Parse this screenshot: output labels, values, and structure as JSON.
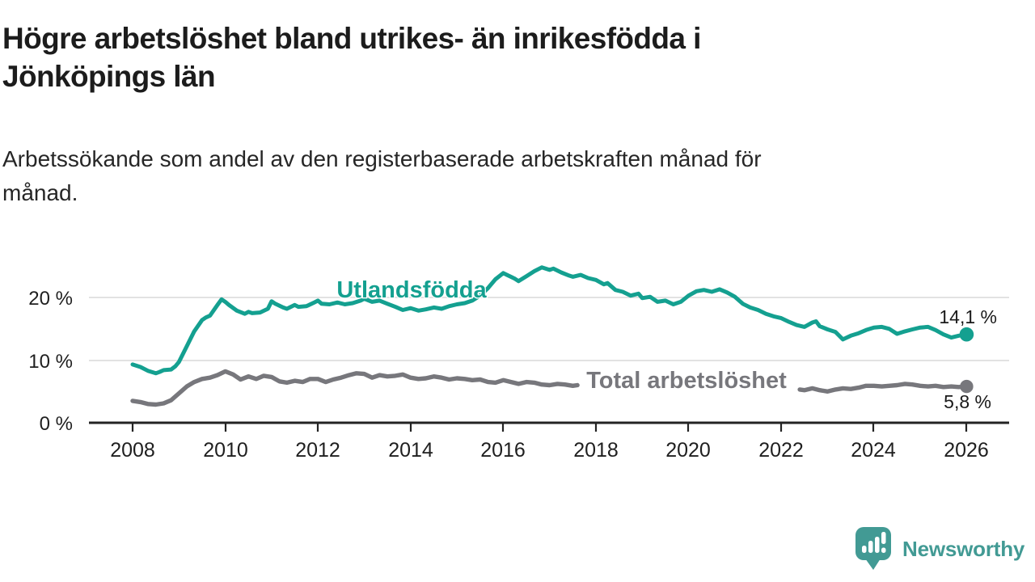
{
  "header": {
    "title_line1": "Högre arbetslöshet bland utrikes- än inrikesfödda i",
    "title_line2": "Jönköpings län",
    "subtitle_line1": "Arbetssökande som andel av den registerbaserade arbetskraften månad för",
    "subtitle_line2": "månad."
  },
  "chart_data": {
    "type": "line",
    "title": "Högre arbetslöshet bland utrikes- än inrikesfödda i Jönköpings län",
    "subtitle": "Arbetssökande som andel av den registerbaserade arbetskraften månad för månad.",
    "grid": "horizontal-only",
    "legend_position": "inline-on-line",
    "x_axis": {
      "tick_labels": [
        "2008",
        "2010",
        "2012",
        "2014",
        "2016",
        "2018",
        "2020",
        "2022",
        "2024",
        "2026"
      ],
      "tick_years": [
        2008,
        2010,
        2012,
        2014,
        2016,
        2018,
        2020,
        2022,
        2024,
        2026
      ],
      "range": [
        2007.1,
        2026.9
      ]
    },
    "y_axis": {
      "tick_labels": [
        "20 %",
        "10 %",
        "0 %"
      ],
      "tick_values": [
        20,
        10,
        0
      ],
      "unit": "%",
      "range": [
        0,
        26
      ],
      "gridlines_at": [
        10,
        20
      ]
    },
    "series": [
      {
        "name": "Utlandsfödda",
        "inline_label": "Utlandsfödda",
        "end_label": "14,1 %",
        "end_value": 14.1,
        "color": "#14a090",
        "segments": [
          [
            [
              2008.0,
              9.3
            ],
            [
              2008.17,
              8.9
            ],
            [
              2008.33,
              8.3
            ],
            [
              2008.5,
              7.9
            ],
            [
              2008.58,
              8.1
            ],
            [
              2008.67,
              8.4
            ],
            [
              2008.83,
              8.5
            ],
            [
              2008.92,
              9.0
            ],
            [
              2009.0,
              9.7
            ],
            [
              2009.17,
              12.2
            ],
            [
              2009.33,
              14.6
            ],
            [
              2009.5,
              16.4
            ],
            [
              2009.58,
              16.8
            ],
            [
              2009.67,
              17.1
            ],
            [
              2009.83,
              18.8
            ],
            [
              2009.92,
              19.7
            ],
            [
              2010.0,
              19.3
            ],
            [
              2010.08,
              18.8
            ],
            [
              2010.25,
              17.9
            ],
            [
              2010.42,
              17.4
            ],
            [
              2010.5,
              17.7
            ],
            [
              2010.58,
              17.5
            ],
            [
              2010.75,
              17.6
            ],
            [
              2010.92,
              18.2
            ],
            [
              2011.0,
              19.4
            ],
            [
              2011.08,
              19.0
            ],
            [
              2011.25,
              18.4
            ],
            [
              2011.33,
              18.2
            ],
            [
              2011.5,
              18.8
            ],
            [
              2011.58,
              18.5
            ],
            [
              2011.75,
              18.6
            ],
            [
              2011.92,
              19.2
            ],
            [
              2012.0,
              19.5
            ],
            [
              2012.08,
              19.0
            ],
            [
              2012.25,
              18.9
            ],
            [
              2012.42,
              19.2
            ],
            [
              2012.58,
              18.9
            ],
            [
              2012.75,
              19.1
            ],
            [
              2012.92,
              19.5
            ],
            [
              2013.0,
              19.8
            ],
            [
              2013.17,
              19.3
            ],
            [
              2013.33,
              19.5
            ],
            [
              2013.5,
              19.0
            ],
            [
              2013.67,
              18.5
            ],
            [
              2013.83,
              18.0
            ],
            [
              2014.0,
              18.3
            ],
            [
              2014.17,
              17.9
            ],
            [
              2014.33,
              18.1
            ],
            [
              2014.5,
              18.4
            ],
            [
              2014.67,
              18.2
            ],
            [
              2014.83,
              18.6
            ],
            [
              2015.0,
              18.9
            ],
            [
              2015.17,
              19.1
            ],
            [
              2015.33,
              19.5
            ],
            [
              2015.5,
              20.3
            ],
            [
              2015.67,
              21.5
            ],
            [
              2015.83,
              22.9
            ],
            [
              2016.0,
              23.9
            ],
            [
              2016.08,
              23.6
            ],
            [
              2016.25,
              23.0
            ],
            [
              2016.33,
              22.6
            ],
            [
              2016.5,
              23.4
            ],
            [
              2016.67,
              24.2
            ],
            [
              2016.83,
              24.8
            ],
            [
              2017.0,
              24.4
            ],
            [
              2017.08,
              24.6
            ],
            [
              2017.25,
              24.0
            ],
            [
              2017.42,
              23.5
            ],
            [
              2017.5,
              23.3
            ],
            [
              2017.67,
              23.6
            ],
            [
              2017.83,
              23.1
            ],
            [
              2018.0,
              22.8
            ],
            [
              2018.17,
              22.1
            ],
            [
              2018.25,
              22.3
            ],
            [
              2018.42,
              21.2
            ],
            [
              2018.58,
              20.9
            ],
            [
              2018.75,
              20.3
            ],
            [
              2018.92,
              20.6
            ],
            [
              2019.0,
              19.9
            ],
            [
              2019.17,
              20.1
            ],
            [
              2019.33,
              19.3
            ],
            [
              2019.5,
              19.5
            ],
            [
              2019.67,
              18.9
            ],
            [
              2019.83,
              19.3
            ],
            [
              2020.0,
              20.3
            ],
            [
              2020.17,
              21.0
            ],
            [
              2020.33,
              21.2
            ],
            [
              2020.5,
              20.9
            ],
            [
              2020.67,
              21.3
            ],
            [
              2020.83,
              20.8
            ],
            [
              2021.0,
              20.1
            ],
            [
              2021.17,
              19.0
            ],
            [
              2021.33,
              18.4
            ],
            [
              2021.5,
              18.0
            ],
            [
              2021.67,
              17.4
            ],
            [
              2021.83,
              17.0
            ],
            [
              2022.0,
              16.7
            ],
            [
              2022.17,
              16.1
            ],
            [
              2022.33,
              15.6
            ],
            [
              2022.5,
              15.3
            ],
            [
              2022.67,
              16.0
            ],
            [
              2022.75,
              16.2
            ],
            [
              2022.83,
              15.4
            ],
            [
              2023.0,
              14.9
            ],
            [
              2023.17,
              14.5
            ],
            [
              2023.33,
              13.3
            ],
            [
              2023.5,
              13.9
            ],
            [
              2023.67,
              14.3
            ],
            [
              2023.83,
              14.8
            ],
            [
              2024.0,
              15.2
            ],
            [
              2024.17,
              15.3
            ],
            [
              2024.33,
              15.0
            ],
            [
              2024.5,
              14.2
            ],
            [
              2024.67,
              14.6
            ],
            [
              2024.83,
              14.9
            ],
            [
              2025.0,
              15.2
            ],
            [
              2025.17,
              15.3
            ],
            [
              2025.33,
              14.8
            ],
            [
              2025.5,
              14.1
            ],
            [
              2025.67,
              13.6
            ],
            [
              2025.83,
              13.9
            ],
            [
              2026.0,
              14.1
            ]
          ]
        ]
      },
      {
        "name": "Total arbetslöshet",
        "inline_label": "Total arbetslöshet",
        "end_label": "5,8 %",
        "end_value": 5.8,
        "color": "#77777c",
        "segments": [
          [
            [
              2008.0,
              3.5
            ],
            [
              2008.17,
              3.3
            ],
            [
              2008.33,
              3.0
            ],
            [
              2008.5,
              2.9
            ],
            [
              2008.67,
              3.1
            ],
            [
              2008.83,
              3.6
            ],
            [
              2009.0,
              4.7
            ],
            [
              2009.17,
              5.8
            ],
            [
              2009.33,
              6.5
            ],
            [
              2009.5,
              7.0
            ],
            [
              2009.67,
              7.2
            ],
            [
              2009.83,
              7.6
            ],
            [
              2010.0,
              8.2
            ],
            [
              2010.17,
              7.7
            ],
            [
              2010.33,
              6.9
            ],
            [
              2010.5,
              7.4
            ],
            [
              2010.67,
              7.0
            ],
            [
              2010.83,
              7.5
            ],
            [
              2011.0,
              7.3
            ],
            [
              2011.17,
              6.6
            ],
            [
              2011.33,
              6.4
            ],
            [
              2011.5,
              6.7
            ],
            [
              2011.67,
              6.5
            ],
            [
              2011.83,
              7.0
            ],
            [
              2012.0,
              7.0
            ],
            [
              2012.17,
              6.5
            ],
            [
              2012.33,
              6.9
            ],
            [
              2012.5,
              7.2
            ],
            [
              2012.67,
              7.6
            ],
            [
              2012.83,
              7.9
            ],
            [
              2013.0,
              7.8
            ],
            [
              2013.17,
              7.2
            ],
            [
              2013.33,
              7.6
            ],
            [
              2013.5,
              7.4
            ],
            [
              2013.67,
              7.5
            ],
            [
              2013.83,
              7.7
            ],
            [
              2014.0,
              7.2
            ],
            [
              2014.17,
              7.0
            ],
            [
              2014.33,
              7.1
            ],
            [
              2014.5,
              7.4
            ],
            [
              2014.67,
              7.2
            ],
            [
              2014.83,
              6.9
            ],
            [
              2015.0,
              7.1
            ],
            [
              2015.17,
              7.0
            ],
            [
              2015.33,
              6.8
            ],
            [
              2015.5,
              6.9
            ],
            [
              2015.67,
              6.5
            ],
            [
              2015.83,
              6.4
            ],
            [
              2016.0,
              6.8
            ],
            [
              2016.17,
              6.5
            ],
            [
              2016.33,
              6.2
            ],
            [
              2016.5,
              6.5
            ],
            [
              2016.67,
              6.4
            ],
            [
              2016.83,
              6.1
            ],
            [
              2017.0,
              6.0
            ],
            [
              2017.17,
              6.2
            ],
            [
              2017.33,
              6.1
            ],
            [
              2017.5,
              5.9
            ],
            [
              2017.6,
              6.0
            ]
          ],
          [
            [
              2022.4,
              5.3
            ],
            [
              2022.5,
              5.2
            ],
            [
              2022.67,
              5.5
            ],
            [
              2022.83,
              5.2
            ],
            [
              2023.0,
              5.0
            ],
            [
              2023.17,
              5.3
            ],
            [
              2023.33,
              5.5
            ],
            [
              2023.5,
              5.4
            ],
            [
              2023.67,
              5.6
            ],
            [
              2023.83,
              5.9
            ],
            [
              2024.0,
              5.9
            ],
            [
              2024.17,
              5.8
            ],
            [
              2024.33,
              5.9
            ],
            [
              2024.5,
              6.0
            ],
            [
              2024.67,
              6.2
            ],
            [
              2024.83,
              6.1
            ],
            [
              2025.0,
              5.9
            ],
            [
              2025.17,
              5.8
            ],
            [
              2025.33,
              5.9
            ],
            [
              2025.5,
              5.7
            ],
            [
              2025.67,
              5.8
            ],
            [
              2025.83,
              5.7
            ],
            [
              2026.0,
              5.8
            ]
          ]
        ]
      }
    ]
  },
  "branding": {
    "logo_text": "Newsworthy",
    "logo_color": "#429a94",
    "logo_icon": "newsworthy-speech-bubble-bar-chart-icon"
  }
}
